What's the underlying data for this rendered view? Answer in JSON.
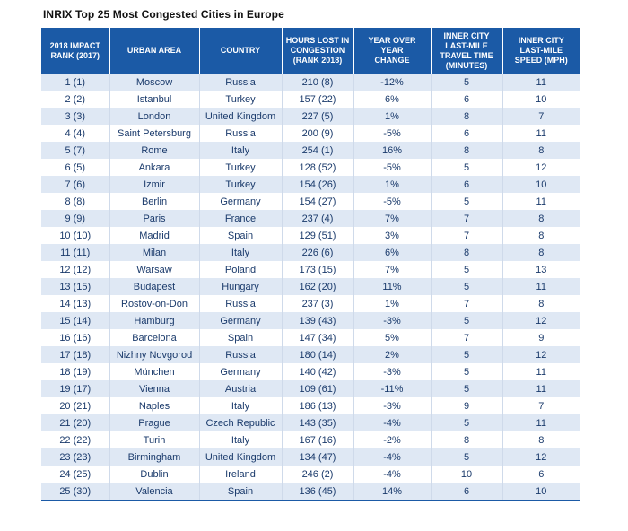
{
  "chart_data": {
    "type": "table",
    "title": "INRIX Top 25 Most Congested Cities in Europe",
    "columns": [
      "2018 IMPACT\nRANK (2017)",
      "URBAN AREA",
      "COUNTRY",
      "HOURS LOST IN\nCONGESTION\n(RANK 2018)",
      "YEAR OVER YEAR\nCHANGE",
      "INNER CITY\nLAST-MILE\nTRAVEL TIME\n(MINUTES)",
      "INNER CITY\nLAST-MILE\nSPEED (MPH)"
    ],
    "rows": [
      [
        "1 (1)",
        "Moscow",
        "Russia",
        "210 (8)",
        "-12%",
        "5",
        "11"
      ],
      [
        "2 (2)",
        "Istanbul",
        "Turkey",
        "157 (22)",
        "6%",
        "6",
        "10"
      ],
      [
        "3 (3)",
        "London",
        "United Kingdom",
        "227 (5)",
        "1%",
        "8",
        "7"
      ],
      [
        "4 (4)",
        "Saint Petersburg",
        "Russia",
        "200 (9)",
        "-5%",
        "6",
        "11"
      ],
      [
        "5 (7)",
        "Rome",
        "Italy",
        "254 (1)",
        "16%",
        "8",
        "8"
      ],
      [
        "6 (5)",
        "Ankara",
        "Turkey",
        "128 (52)",
        "-5%",
        "5",
        "12"
      ],
      [
        "7 (6)",
        "Izmir",
        "Turkey",
        "154 (26)",
        "1%",
        "6",
        "10"
      ],
      [
        "8 (8)",
        "Berlin",
        "Germany",
        "154 (27)",
        "-5%",
        "5",
        "11"
      ],
      [
        "9 (9)",
        "Paris",
        "France",
        "237 (4)",
        "7%",
        "7",
        "8"
      ],
      [
        "10 (10)",
        "Madrid",
        "Spain",
        "129 (51)",
        "3%",
        "7",
        "8"
      ],
      [
        "11 (11)",
        "Milan",
        "Italy",
        "226 (6)",
        "6%",
        "8",
        "8"
      ],
      [
        "12 (12)",
        "Warsaw",
        "Poland",
        "173 (15)",
        "7%",
        "5",
        "13"
      ],
      [
        "13 (15)",
        "Budapest",
        "Hungary",
        "162 (20)",
        "11%",
        "5",
        "11"
      ],
      [
        "14 (13)",
        "Rostov-on-Don",
        "Russia",
        "237 (3)",
        "1%",
        "7",
        "8"
      ],
      [
        "15 (14)",
        "Hamburg",
        "Germany",
        "139 (43)",
        "-3%",
        "5",
        "12"
      ],
      [
        "16 (16)",
        "Barcelona",
        "Spain",
        "147 (34)",
        "5%",
        "7",
        "9"
      ],
      [
        "17 (18)",
        "Nizhny Novgorod",
        "Russia",
        "180 (14)",
        "2%",
        "5",
        "12"
      ],
      [
        "18 (19)",
        "München",
        "Germany",
        "140 (42)",
        "-3%",
        "5",
        "11"
      ],
      [
        "19 (17)",
        "Vienna",
        "Austria",
        "109 (61)",
        "-11%",
        "5",
        "11"
      ],
      [
        "20 (21)",
        "Naples",
        "Italy",
        "186 (13)",
        "-3%",
        "9",
        "7"
      ],
      [
        "21 (20)",
        "Prague",
        "Czech Republic",
        "143 (35)",
        "-4%",
        "5",
        "11"
      ],
      [
        "22 (22)",
        "Turin",
        "Italy",
        "167 (16)",
        "-2%",
        "8",
        "8"
      ],
      [
        "23 (23)",
        "Birmingham",
        "United Kingdom",
        "134 (47)",
        "-4%",
        "5",
        "12"
      ],
      [
        "24 (25)",
        "Dublin",
        "Ireland",
        "246 (2)",
        "-4%",
        "10",
        "6"
      ],
      [
        "25 (30)",
        "Valencia",
        "Spain",
        "136 (45)",
        "14%",
        "6",
        "10"
      ]
    ]
  },
  "colors": {
    "header_bg": "#1b5aa6",
    "row_stripe": "#dfe8f4",
    "text": "#1a3a6b"
  }
}
